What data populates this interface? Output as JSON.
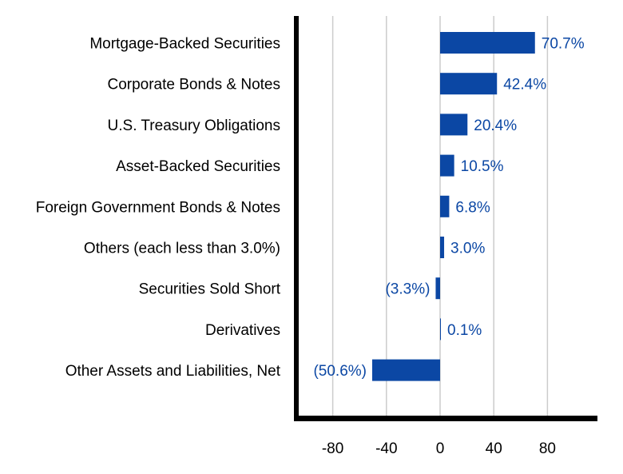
{
  "chart_data": {
    "type": "bar",
    "orientation": "horizontal",
    "categories": [
      "Mortgage-Backed Securities",
      "Corporate Bonds & Notes",
      "U.S. Treasury Obligations",
      "Asset-Backed Securities",
      "Foreign Government Bonds & Notes",
      "Others (each less than 3.0%)",
      "Securities Sold Short",
      "Derivatives",
      "Other Assets and Liabilities, Net"
    ],
    "values": [
      70.7,
      42.4,
      20.4,
      10.5,
      6.8,
      3.0,
      -3.3,
      0.1,
      -50.6
    ],
    "value_labels": [
      "70.7%",
      "42.4%",
      "20.4%",
      "10.5%",
      "6.8%",
      "3.0%",
      "(3.3%)",
      "0.1%",
      "(50.6%)"
    ],
    "x_ticks": [
      -80,
      -40,
      0,
      40,
      80
    ],
    "x_tick_labels": [
      "-80",
      "-40",
      "0",
      "40",
      "80"
    ],
    "xlim": [
      -108,
      117
    ],
    "grid": true,
    "colors": {
      "bar": "#0b47a4",
      "value_label": "#0b47a4",
      "gridline": "#cccccc",
      "axis": "#000000",
      "category_label": "#000000"
    }
  }
}
